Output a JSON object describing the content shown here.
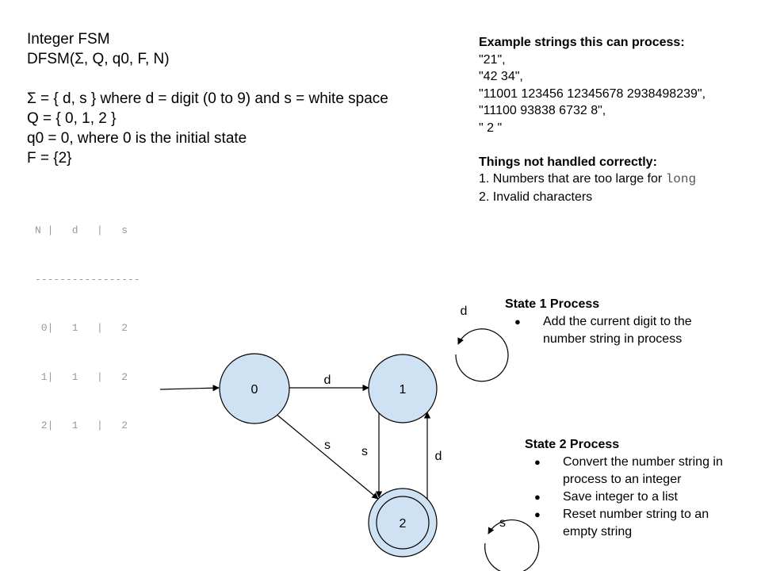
{
  "header": {
    "lines": [
      "Integer FSM",
      "DFSM(Σ, Q, q0, F, N)",
      "",
      "Σ = { d, s } where d = digit (0 to 9) and s = white space",
      "Q = { 0, 1, 2 }",
      "q0 = 0, where 0 is the initial state",
      "F = {2}"
    ]
  },
  "examples": {
    "title": "Example strings this can process:",
    "items": [
      "\"21\",",
      "\"42 34\",",
      "\"11001 123456 12345678 2938498239\",",
      "\"11100 93838 6732 8\",",
      "\" 2 \""
    ]
  },
  "not_handled": {
    "title": "Things not handled correctly:",
    "item1_text": "1. Numbers that are too large for ",
    "item1_code": "long",
    "item2": "2. Invalid characters"
  },
  "table": {
    "lines": [
      "N |   d   |   s",
      "-----------------",
      " 0|   1   |   2",
      " 1|   1   |   2",
      " 2|   1   |   2"
    ]
  },
  "diagram": {
    "state_fill": "#cfe2f3",
    "stroke": "#000000",
    "states": {
      "s0": "0",
      "s1": "1",
      "s2": "2"
    },
    "edge_labels": {
      "e01": "d",
      "e02": "s",
      "e12": "s",
      "e21": "d",
      "loop1": "d",
      "loop2": "s"
    }
  },
  "state1_process": {
    "title": "State 1 Process",
    "items": [
      "Add the current digit to the number string in process"
    ]
  },
  "state2_process": {
    "title": "State 2 Process",
    "items": [
      "Convert the number string in process to an integer",
      "Save integer to a list",
      "Reset number string to an empty string"
    ]
  }
}
